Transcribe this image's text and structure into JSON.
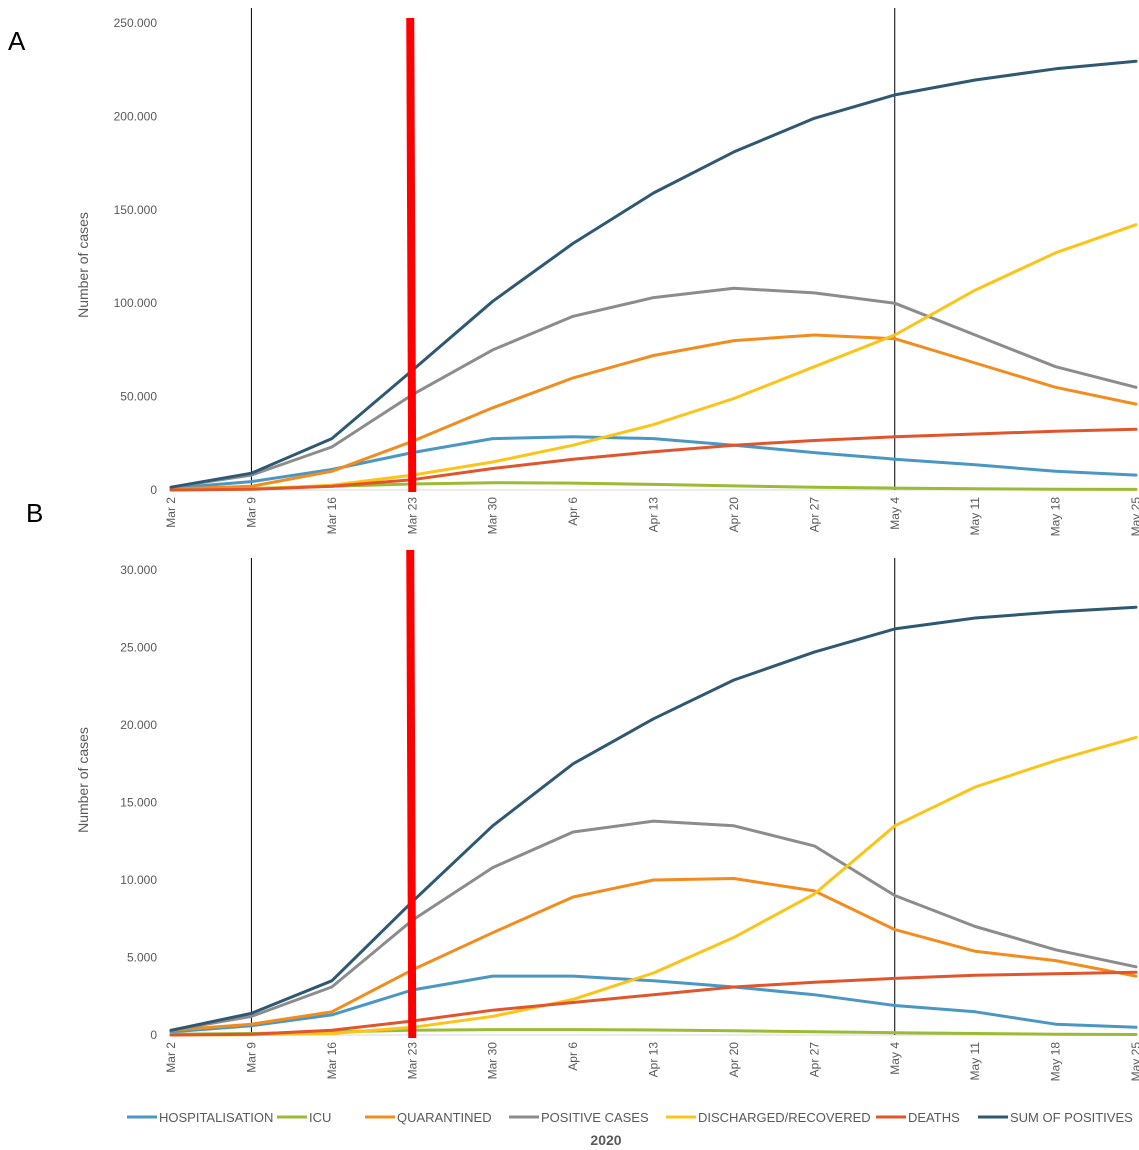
{
  "panels": [
    {
      "label": "A",
      "ylabel": "Number of cases"
    },
    {
      "label": "B",
      "ylabel": "Number of cases"
    }
  ],
  "xlabel": "2020",
  "colors": {
    "HOSPITALISATION": "#4a97c4",
    "ICU": "#9bbb34",
    "QUARANTINED": "#f28c1e",
    "POSITIVE CASES": "#8c8c8c",
    "DISCHARGED/RECOVERED": "#fcc419",
    "DEATHS": "#e0552c",
    "SUM OF POSITIVES": "#2f5872",
    "marker_red": "#ff0000",
    "vline": "#000000"
  },
  "chart_data": [
    {
      "type": "line",
      "panel": "A",
      "title": "",
      "xlabel": "2020",
      "ylabel": "Number of cases",
      "categories": [
        "Mar 2",
        "Mar 9",
        "Mar 16",
        "Mar 23",
        "Mar 30",
        "Apr 6",
        "Apr 13",
        "Apr 20",
        "Apr 27",
        "May 4",
        "May 11",
        "May 18",
        "May 25"
      ],
      "ylim": [
        0,
        250000
      ],
      "yticks": [
        0,
        50000,
        100000,
        150000,
        200000,
        250000
      ],
      "ytick_labels": [
        "0",
        "50.000",
        "100.000",
        "150.000",
        "200.000",
        "250.000"
      ],
      "vertical_lines": [
        "Mar 9",
        "May 4"
      ],
      "highlight_line": "Mar 23",
      "legend": "bottom",
      "series": [
        {
          "name": "HOSPITALISATION",
          "values": [
            1000,
            4500,
            11000,
            20000,
            27500,
            28500,
            27500,
            24000,
            20000,
            16500,
            13500,
            10000,
            8000
          ]
        },
        {
          "name": "ICU",
          "values": [
            200,
            800,
            2000,
            3200,
            3900,
            3700,
            3000,
            2200,
            1500,
            1000,
            700,
            450,
            300
          ]
        },
        {
          "name": "QUARANTINED",
          "values": [
            500,
            2000,
            10000,
            26000,
            44000,
            60000,
            72000,
            80000,
            83000,
            81000,
            68000,
            55000,
            46000
          ]
        },
        {
          "name": "POSITIVE CASES",
          "values": [
            1500,
            8000,
            23000,
            51000,
            75000,
            93000,
            103000,
            108000,
            105500,
            100000,
            83000,
            66000,
            55000
          ]
        },
        {
          "name": "DISCHARGED/RECOVERED",
          "values": [
            0,
            500,
            2500,
            8000,
            15000,
            24000,
            35000,
            49000,
            66000,
            83000,
            107000,
            127000,
            142000
          ]
        },
        {
          "name": "DEATHS",
          "values": [
            0,
            400,
            2000,
            5500,
            11500,
            16500,
            20500,
            24000,
            26500,
            28500,
            30000,
            31500,
            32500
          ]
        },
        {
          "name": "SUM OF POSITIVES",
          "values": [
            1500,
            9000,
            27500,
            64000,
            101000,
            132000,
            159000,
            181000,
            199000,
            211500,
            219500,
            225500,
            229500
          ]
        }
      ]
    },
    {
      "type": "line",
      "panel": "B",
      "title": "",
      "xlabel": "2020",
      "ylabel": "Number of cases",
      "categories": [
        "Mar 2",
        "Mar 9",
        "Mar 16",
        "Mar 23",
        "Mar 30",
        "Apr 6",
        "Apr 13",
        "Apr 20",
        "Apr 27",
        "May 4",
        "May 11",
        "May 18",
        "May 25"
      ],
      "ylim": [
        0,
        30000
      ],
      "yticks": [
        0,
        5000,
        10000,
        15000,
        20000,
        25000,
        30000
      ],
      "ytick_labels": [
        "0",
        "5.000",
        "10.000",
        "15.000",
        "20.000",
        "25.000",
        "30.000"
      ],
      "vertical_lines": [
        "Mar 9",
        "May 4"
      ],
      "highlight_line": "Mar 23",
      "legend": "bottom",
      "series": [
        {
          "name": "HOSPITALISATION",
          "values": [
            200,
            600,
            1300,
            2900,
            3800,
            3800,
            3500,
            3100,
            2600,
            1900,
            1500,
            700,
            500
          ]
        },
        {
          "name": "ICU",
          "values": [
            50,
            100,
            200,
            300,
            350,
            350,
            320,
            270,
            210,
            150,
            100,
            50,
            30
          ]
        },
        {
          "name": "QUARANTINED",
          "values": [
            300,
            700,
            1500,
            4200,
            6600,
            8900,
            10000,
            10100,
            9300,
            6800,
            5400,
            4800,
            3800
          ]
        },
        {
          "name": "POSITIVE CASES",
          "values": [
            300,
            1200,
            3100,
            7400,
            10800,
            13100,
            13800,
            13500,
            12200,
            9000,
            7000,
            5500,
            4400
          ]
        },
        {
          "name": "DISCHARGED/RECOVERED",
          "values": [
            0,
            20,
            100,
            500,
            1200,
            2300,
            4000,
            6300,
            9100,
            13500,
            16000,
            17700,
            19200
          ]
        },
        {
          "name": "DEATHS",
          "values": [
            0,
            50,
            300,
            900,
            1600,
            2100,
            2600,
            3100,
            3400,
            3650,
            3850,
            3950,
            4050
          ]
        },
        {
          "name": "SUM OF POSITIVES",
          "values": [
            300,
            1400,
            3500,
            8600,
            13500,
            17500,
            20400,
            22900,
            24700,
            26200,
            26900,
            27300,
            27600
          ]
        }
      ]
    }
  ]
}
